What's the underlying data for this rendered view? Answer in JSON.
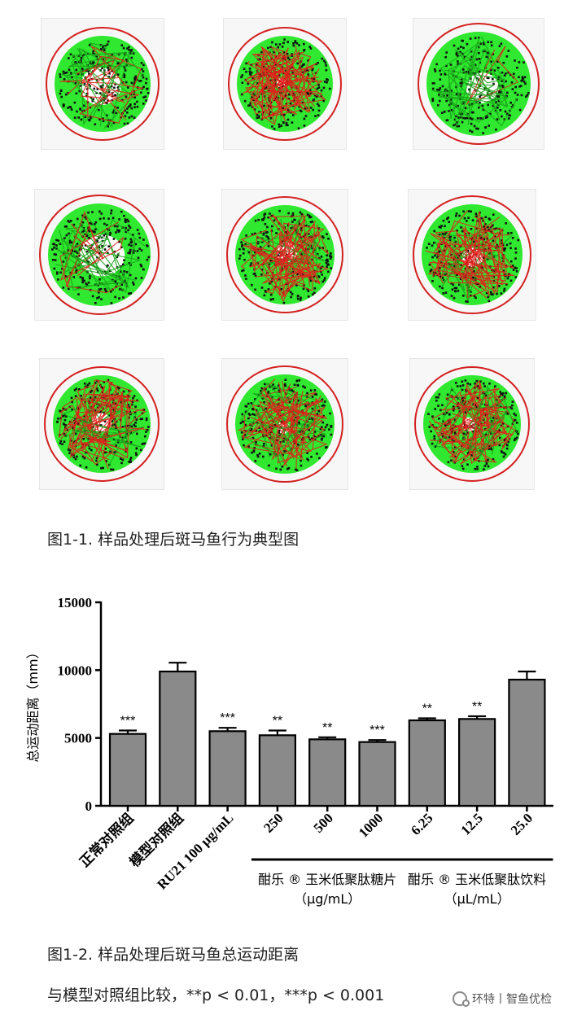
{
  "colors": {
    "arena_ring": "#d42020",
    "arena_fill": "#2fe82f",
    "track_red": "#e0201c",
    "track_black": "#111111",
    "bar_fill": "#8a8a8a",
    "axis": "#000000"
  },
  "trajectory_grid": {
    "rows": 3,
    "columns": 3,
    "caption": "图1-1. 样品处理后斑马鱼行为典型图"
  },
  "chart_data": {
    "type": "bar",
    "ylabel": "总运动距离（mm）",
    "ylim": [
      0,
      15000
    ],
    "y_ticks": [
      0,
      5000,
      10000,
      15000
    ],
    "y_tick_labels": [
      "0",
      "5000",
      "10000",
      "15000"
    ],
    "categories": [
      "正常对照组",
      "模型对照组",
      "RU21 100 μg/mL",
      "250",
      "500",
      "1000",
      "6.25",
      "12.5",
      "25.0"
    ],
    "values": [
      5300,
      9900,
      5500,
      5200,
      4900,
      4700,
      6300,
      6400,
      9300
    ],
    "errors": [
      250,
      650,
      250,
      350,
      150,
      150,
      150,
      200,
      600
    ],
    "significance": [
      "***",
      "",
      "***",
      "**",
      "**",
      "***",
      "**",
      "**",
      ""
    ],
    "groups": [
      {
        "label_line1": "酣乐 ® 玉米低聚肽糖片",
        "label_line2": "（μg/mL）",
        "from": 3,
        "to": 5
      },
      {
        "label_line1": "酣乐 ® 玉米低聚肽饮料",
        "label_line2": "（μL/mL）",
        "from": 6,
        "to": 8
      }
    ],
    "grid": false,
    "legend": "none"
  },
  "figure2": {
    "caption": "图1-2. 样品处理后斑马鱼总运动距离",
    "note": "与模型对照组比较，**p < 0.01，***p < 0.001"
  },
  "watermark": {
    "text": "环特丨智鱼优检",
    "icon": "wechat-icon"
  }
}
